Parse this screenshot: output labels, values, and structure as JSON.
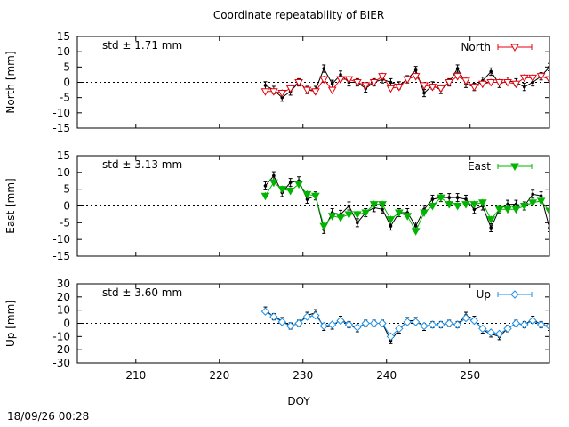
{
  "title": "Coordinate repeatability of BIER",
  "xlabel": "DOY",
  "timestamp": "18/09/26 00:28",
  "chart_data": [
    {
      "type": "line",
      "panel": "north",
      "ylabel": "North [mm]",
      "std_label": "std ± 1.71 mm",
      "legend": "North",
      "color": "#e8000b",
      "marker": "triangle-down-open",
      "xlim": [
        203,
        259.5
      ],
      "ylim": [
        -15,
        15
      ],
      "yticks": [
        15,
        10,
        5,
        0,
        -5,
        -10,
        -15
      ],
      "x": [
        225.5,
        226.5,
        227.5,
        228.5,
        229.5,
        230.5,
        231.5,
        232.5,
        233.5,
        234.5,
        235.5,
        236.5,
        237.5,
        238.5,
        239.5,
        240.5,
        241.5,
        242.5,
        243.5,
        244.5,
        245.5,
        246.5,
        247.5,
        248.5,
        249.5,
        250.5,
        251.5,
        252.5,
        253.5,
        254.5,
        255.5,
        256.5,
        257.5,
        258.5,
        259.5
      ],
      "series": [
        {
          "name": "",
          "role": "raw",
          "color": "#000000",
          "values": [
            -1,
            -2.5,
            -5,
            -3,
            0,
            -2.5,
            -2.5,
            4.5,
            -0.5,
            2.5,
            0,
            0,
            -2,
            0,
            1,
            0,
            -1,
            1,
            4,
            -3.5,
            -1,
            -2.5,
            0,
            4.5,
            -0.5,
            -1.5,
            0.5,
            3.5,
            -0.5,
            0.5,
            0,
            -1.5,
            0,
            2,
            5
          ]
        },
        {
          "name": "North",
          "role": "model",
          "color": "#e8000b",
          "values": [
            -3,
            -3,
            -3.5,
            -2,
            0,
            -2.5,
            -3,
            1,
            -2.5,
            1,
            1,
            0,
            -1,
            0,
            2,
            -2,
            -1.5,
            1,
            2,
            -1,
            -1.5,
            -2,
            0,
            2,
            0.5,
            -1.5,
            -0.5,
            0,
            0,
            0,
            -0.5,
            1.5,
            1.5,
            2,
            1
          ]
        }
      ]
    },
    {
      "type": "line",
      "panel": "east",
      "ylabel": "East [mm]",
      "std_label": "std ± 3.13 mm",
      "legend": "East",
      "color": "#00b400",
      "marker": "triangle-down-filled",
      "xlim": [
        203,
        259.5
      ],
      "ylim": [
        -15,
        15
      ],
      "yticks": [
        15,
        10,
        5,
        0,
        -5,
        -10,
        -15
      ],
      "x": [
        225.5,
        226.5,
        227.5,
        228.5,
        229.5,
        230.5,
        231.5,
        232.5,
        233.5,
        234.5,
        235.5,
        236.5,
        237.5,
        238.5,
        239.5,
        240.5,
        241.5,
        242.5,
        243.5,
        244.5,
        245.5,
        246.5,
        247.5,
        248.5,
        249.5,
        250.5,
        251.5,
        252.5,
        253.5,
        254.5,
        255.5,
        256.5,
        257.5,
        258.5,
        259.5
      ],
      "series": [
        {
          "name": "",
          "role": "raw",
          "color": "#000000",
          "values": [
            6,
            9,
            4,
            7,
            7.5,
            2,
            3,
            -7,
            -2,
            -2.5,
            0,
            -5,
            -2,
            -0.5,
            -1,
            -6,
            -2,
            -2,
            -6,
            -1,
            2,
            2.5,
            2.5,
            2.5,
            2,
            -1,
            0,
            -6.5,
            -1,
            0.5,
            0.5,
            0,
            3.5,
            3,
            -6.5
          ]
        },
        {
          "name": "East",
          "role": "model",
          "color": "#00b400",
          "values": [
            3,
            7,
            5,
            4.5,
            6.5,
            3.5,
            3,
            -6,
            -3,
            -3.5,
            -2.5,
            -2.5,
            -2,
            0.5,
            0.5,
            -4,
            -2,
            -3,
            -7.5,
            -2,
            0,
            2.5,
            0.5,
            0,
            0.5,
            0.5,
            1,
            -4,
            -1,
            -1,
            -1,
            0,
            1,
            1.5,
            -1.5
          ]
        }
      ]
    },
    {
      "type": "line",
      "panel": "up",
      "ylabel": "Up [mm]",
      "std_label": "std ± 3.60 mm",
      "legend": "Up",
      "color": "#1e90e6",
      "marker": "diamond-open",
      "xlim": [
        203,
        259.5
      ],
      "ylim": [
        -30,
        30
      ],
      "yticks": [
        30,
        20,
        10,
        0,
        -10,
        -20,
        -30
      ],
      "xticks": [
        210,
        220,
        230,
        240,
        250
      ],
      "x": [
        225.5,
        226.5,
        227.5,
        228.5,
        229.5,
        230.5,
        231.5,
        232.5,
        233.5,
        234.5,
        235.5,
        236.5,
        237.5,
        238.5,
        239.5,
        240.5,
        241.5,
        242.5,
        243.5,
        244.5,
        245.5,
        246.5,
        247.5,
        248.5,
        249.5,
        250.5,
        251.5,
        252.5,
        253.5,
        254.5,
        255.5,
        256.5,
        257.5,
        258.5,
        259.5
      ],
      "series": [
        {
          "name": "",
          "role": "raw",
          "color": "#000000",
          "values": [
            10,
            5,
            2,
            -2,
            0,
            6,
            8,
            -3,
            -2,
            3,
            -1,
            -4,
            0,
            0,
            0,
            -13,
            -5,
            2,
            2,
            -3,
            -1,
            -1,
            0,
            -1,
            6,
            3,
            -5,
            -8,
            -10,
            -4,
            0,
            -1,
            3,
            -1,
            -3
          ]
        },
        {
          "name": "Up",
          "role": "model",
          "color": "#1e90e6",
          "values": [
            9,
            5,
            1,
            -2,
            0,
            5,
            6,
            -2,
            -1,
            2,
            -1,
            -3,
            0,
            0,
            0,
            -10,
            -4,
            1,
            1,
            -2,
            -1,
            -1,
            0,
            -1,
            4,
            2,
            -4,
            -7,
            -8,
            -4,
            0,
            -1,
            2,
            -1,
            -2
          ]
        }
      ]
    }
  ]
}
